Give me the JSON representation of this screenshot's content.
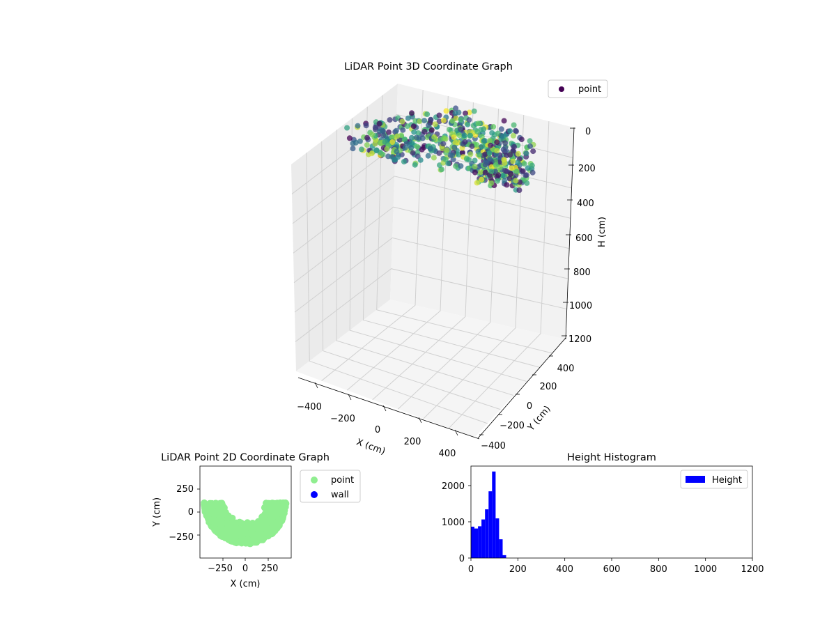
{
  "chart_data": [
    {
      "type": "scatter",
      "title": "LiDAR Point 3D Coordinate Graph",
      "xlabel": "X (cm)",
      "ylabel": "Y (cm)",
      "zlabel": "H (cm)",
      "x_ticks": [
        "−400",
        "−200",
        "0",
        "200",
        "400"
      ],
      "y_ticks": [
        "−400",
        "−200",
        "0",
        "200",
        "400"
      ],
      "z_ticks": [
        "0",
        "200",
        "400",
        "600",
        "800",
        "1000",
        "1200"
      ],
      "xlim": [
        -450,
        450
      ],
      "ylim": [
        -450,
        450
      ],
      "zlim": [
        1200,
        0
      ],
      "z_inverted": true,
      "grid": true,
      "colormap": "viridis",
      "legend": {
        "entries": [
          "point"
        ],
        "placement": "top-right"
      },
      "series": [
        {
          "name": "point",
          "color": "#440154",
          "shape": "arc",
          "arc_radius_outer": 450,
          "arc_radius_inner": 210,
          "arc_angle_range_deg": [
            0,
            180
          ],
          "height_range": [
            0,
            300
          ]
        }
      ]
    },
    {
      "type": "scatter",
      "title": "LiDAR Point 2D Coordinate Graph",
      "xlabel": "X (cm)",
      "ylabel": "Y (cm)",
      "x_ticks": [
        "−250",
        "0",
        "250"
      ],
      "y_ticks": [
        "250",
        "0",
        "−250"
      ],
      "xlim": [
        -500,
        500
      ],
      "ylim": [
        -500,
        500
      ],
      "legend": {
        "entries": [
          "point",
          "wall"
        ],
        "placement": "outside-right"
      },
      "series": [
        {
          "name": "point",
          "color": "#90ee90",
          "shape": "half-ring",
          "outer_radius": 450,
          "inner_radius": 210
        },
        {
          "name": "wall",
          "color": "#0000ff",
          "points": []
        }
      ]
    },
    {
      "type": "bar",
      "title": "Height Histogram",
      "xlabel": "",
      "ylabel": "",
      "x_ticks": [
        "0",
        "200",
        "400",
        "600",
        "800",
        "1000",
        "1200"
      ],
      "y_ticks": [
        "0",
        "1000",
        "2000"
      ],
      "xlim": [
        0,
        1200
      ],
      "ylim": [
        0,
        2550
      ],
      "bin_width": 15,
      "bin_edges": [
        0,
        15,
        30,
        45,
        60,
        75,
        90,
        105,
        120,
        135,
        150
      ],
      "series": [
        {
          "name": "Height",
          "color": "#0000ff",
          "values": [
            870,
            820,
            880,
            1070,
            1350,
            1850,
            2400,
            1100,
            520,
            80
          ]
        }
      ],
      "legend": {
        "entries": [
          "Height"
        ],
        "placement": "top-right"
      }
    }
  ]
}
